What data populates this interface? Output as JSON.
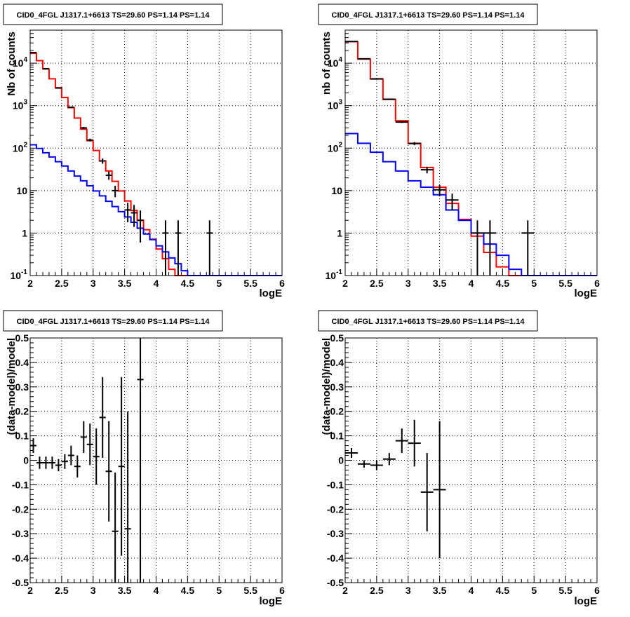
{
  "colors": {
    "data": "#000000",
    "model_total": "#ff0000",
    "model_background": "#0000ff",
    "grid": "#000000",
    "frame": "#000000"
  },
  "chart_data": [
    {
      "type": "line",
      "panel": "top-left",
      "title": "CID0_4FGL J1317.1+6613 TS=29.60 PS=1.14 PS=1.14",
      "xlabel": "logE",
      "ylabel": "Nb of counts",
      "xlim": [
        2,
        6
      ],
      "ylim": [
        0.1,
        60000
      ],
      "yscale": "log",
      "grid": true,
      "xticks": [
        "2",
        "2.5",
        "3",
        "3.5",
        "4",
        "4.5",
        "5",
        "5.5",
        "6"
      ],
      "yticks": [
        {
          "value": 0.1,
          "base": "10",
          "exp": "-1"
        },
        {
          "value": 1,
          "label": "1"
        },
        {
          "value": 10,
          "label": "10"
        },
        {
          "value": 100,
          "base": "10",
          "exp": "2"
        },
        {
          "value": 1000,
          "base": "10",
          "exp": "3"
        },
        {
          "value": 10000,
          "base": "10",
          "exp": "4"
        }
      ],
      "bin_edges": [
        2.0,
        2.1,
        2.2,
        2.3,
        2.4,
        2.5,
        2.6,
        2.7,
        2.8,
        2.9,
        3.0,
        3.1,
        3.2,
        3.3,
        3.4,
        3.5,
        3.6,
        3.7,
        3.8,
        3.9,
        4.0,
        4.1,
        4.2,
        4.3,
        4.4,
        4.5,
        4.6,
        4.7,
        4.8,
        4.9,
        5.0,
        5.1,
        5.2,
        5.3,
        5.4,
        5.5,
        5.6,
        5.7,
        5.8,
        5.9,
        6.0
      ],
      "series": [
        {
          "kind": "step",
          "color": "#ff0000",
          "values": [
            17000,
            11500,
            7300,
            4300,
            2650,
            1550,
            900,
            510,
            280,
            150,
            88,
            50,
            29,
            16.5,
            9.8,
            5.7,
            3.4,
            2.0,
            1.2,
            0.72,
            0.42,
            0.25,
            0.14,
            0.1,
            0.1,
            0.1,
            0.1,
            0.1,
            0.1,
            0.1,
            0.1,
            0.1,
            0.1,
            0.1,
            0.1,
            0.1,
            0.1,
            0.1,
            0.1,
            0.1
          ]
        },
        {
          "kind": "step",
          "color": "#0000ff",
          "values": [
            120,
            98,
            78,
            62,
            48,
            38,
            29,
            22,
            17,
            13,
            9.8,
            7.5,
            5.6,
            4.2,
            3.2,
            2.4,
            1.8,
            1.3,
            0.95,
            0.7,
            0.5,
            0.36,
            0.26,
            0.19,
            0.13,
            0.1,
            0.1,
            0.1,
            0.1,
            0.1,
            0.1,
            0.1,
            0.1,
            0.1,
            0.1,
            0.1,
            0.1,
            0.1,
            0.1,
            0.1
          ]
        },
        {
          "kind": "errorbar",
          "color": "#000000",
          "points": [
            {
              "x": 2.05,
              "y": 17800,
              "lo": 17600,
              "hi": 18000
            },
            {
              "x": 2.25,
              "y": 7400,
              "lo": 7300,
              "hi": 7500
            },
            {
              "x": 2.45,
              "y": 2600,
              "lo": 2550,
              "hi": 2650
            },
            {
              "x": 2.65,
              "y": 920,
              "lo": 890,
              "hi": 950
            },
            {
              "x": 2.85,
              "y": 300,
              "lo": 283,
              "hi": 317
            },
            {
              "x": 2.95,
              "y": 155,
              "lo": 143,
              "hi": 167
            },
            {
              "x": 3.15,
              "y": 50,
              "lo": 43,
              "hi": 57
            },
            {
              "x": 3.25,
              "y": 23,
              "lo": 18,
              "hi": 28
            },
            {
              "x": 3.35,
              "y": 10,
              "lo": 7,
              "hi": 13
            },
            {
              "x": 3.55,
              "y": 3.5,
              "lo": 1.8,
              "hi": 5.2
            },
            {
              "x": 3.65,
              "y": 3.0,
              "lo": 1.4,
              "hi": 4.6
            },
            {
              "x": 3.75,
              "y": 2.0,
              "lo": 0.6,
              "hi": 3.4
            },
            {
              "x": 4.15,
              "y": 1,
              "lo": 0.1,
              "hi": 2.0
            },
            {
              "x": 4.35,
              "y": 1,
              "lo": 0.1,
              "hi": 2.0
            },
            {
              "x": 4.85,
              "y": 1,
              "lo": 0.1,
              "hi": 2.0
            }
          ]
        }
      ]
    },
    {
      "type": "line",
      "panel": "top-right",
      "title": "CID0_4FGL J1317.1+6613 TS=29.60 PS=1.14 PS=1.14",
      "xlabel": "logE",
      "ylabel": "nb of counts",
      "xlim": [
        2,
        6
      ],
      "ylim": [
        0.1,
        60000
      ],
      "yscale": "log",
      "grid": true,
      "xticks": [
        "2",
        "2.5",
        "3",
        "3.5",
        "4",
        "4.5",
        "5",
        "5.5",
        "6"
      ],
      "yticks": [
        {
          "value": 0.1,
          "base": "10",
          "exp": "-1"
        },
        {
          "value": 1,
          "label": "1"
        },
        {
          "value": 10,
          "label": "10"
        },
        {
          "value": 100,
          "base": "10",
          "exp": "2"
        },
        {
          "value": 1000,
          "base": "10",
          "exp": "3"
        },
        {
          "value": 10000,
          "base": "10",
          "exp": "4"
        }
      ],
      "bin_edges": [
        2.0,
        2.2,
        2.4,
        2.6,
        2.8,
        3.0,
        3.2,
        3.4,
        3.6,
        3.8,
        4.0,
        4.2,
        4.4,
        4.6,
        4.8,
        5.0,
        5.2,
        5.4,
        5.6,
        5.8,
        6.0
      ],
      "series": [
        {
          "kind": "step",
          "color": "#ff0000",
          "values": [
            32000,
            12500,
            4300,
            1400,
            440,
            130,
            35,
            12,
            5.0,
            2.1,
            0.85,
            0.35,
            0.16,
            0.1,
            0.1,
            0.1,
            0.1,
            0.1,
            0.1,
            0.1
          ]
        },
        {
          "kind": "step",
          "color": "#0000ff",
          "values": [
            220,
            130,
            80,
            48,
            29,
            17,
            12,
            8,
            3.5,
            2.0,
            1.0,
            0.55,
            0.3,
            0.14,
            0.1,
            0.1,
            0.1,
            0.1,
            0.1,
            0.1
          ]
        },
        {
          "kind": "errorbar",
          "color": "#000000",
          "points": [
            {
              "x": 2.1,
              "y": 32500,
              "lo": 32300,
              "hi": 32700
            },
            {
              "x": 2.3,
              "y": 12700,
              "lo": 12550,
              "hi": 12850
            },
            {
              "x": 2.5,
              "y": 4250,
              "lo": 4180,
              "hi": 4320
            },
            {
              "x": 2.7,
              "y": 1420,
              "lo": 1380,
              "hi": 1460
            },
            {
              "x": 2.9,
              "y": 410,
              "lo": 390,
              "hi": 430
            },
            {
              "x": 3.1,
              "y": 128,
              "lo": 117,
              "hi": 139
            },
            {
              "x": 3.3,
              "y": 31,
              "lo": 25.5,
              "hi": 36.5
            },
            {
              "x": 3.5,
              "y": 10.5,
              "lo": 7.3,
              "hi": 13.7
            },
            {
              "x": 3.7,
              "y": 6,
              "lo": 3.5,
              "hi": 8.5
            },
            {
              "x": 4.1,
              "y": 1,
              "lo": 0.1,
              "hi": 2.0
            },
            {
              "x": 4.3,
              "y": 1,
              "lo": 0.1,
              "hi": 2.0
            },
            {
              "x": 4.9,
              "y": 1,
              "lo": 0.1,
              "hi": 2.0
            }
          ]
        }
      ]
    },
    {
      "type": "scatter",
      "panel": "bottom-left",
      "title": "CID0_4FGL J1317.1+6613 TS=29.60 PS=1.14 PS=1.14",
      "xlabel": "logE",
      "ylabel": "(data-model)/model",
      "xlim": [
        2,
        6
      ],
      "ylim": [
        -0.5,
        0.5
      ],
      "yscale": "linear",
      "grid": true,
      "xticks": [
        "2",
        "2.5",
        "3",
        "3.5",
        "4",
        "4.5",
        "5",
        "5.5",
        "6"
      ],
      "yticks": [
        "-0.5",
        "-0.4",
        "-0.3",
        "-0.2",
        "-0.1",
        "0",
        "0.1",
        "0.2",
        "0.3",
        "0.4",
        "0.5"
      ],
      "series": [
        {
          "kind": "errorbar",
          "color": "#000000",
          "xerr": 0.05,
          "points": [
            {
              "x": 2.05,
              "y": 0.06,
              "lo": 0.03,
              "hi": 0.09
            },
            {
              "x": 2.15,
              "y": -0.01,
              "lo": -0.035,
              "hi": 0.015
            },
            {
              "x": 2.25,
              "y": -0.01,
              "lo": -0.035,
              "hi": 0.015
            },
            {
              "x": 2.35,
              "y": -0.01,
              "lo": -0.035,
              "hi": 0.015
            },
            {
              "x": 2.45,
              "y": -0.02,
              "lo": -0.045,
              "hi": 0.005
            },
            {
              "x": 2.55,
              "y": -0.005,
              "lo": -0.035,
              "hi": 0.025
            },
            {
              "x": 2.65,
              "y": 0.02,
              "lo": -0.02,
              "hi": 0.06
            },
            {
              "x": 2.75,
              "y": -0.025,
              "lo": -0.07,
              "hi": 0.02
            },
            {
              "x": 2.85,
              "y": 0.095,
              "lo": 0.03,
              "hi": 0.16
            },
            {
              "x": 2.95,
              "y": 0.065,
              "lo": -0.02,
              "hi": 0.15
            },
            {
              "x": 3.05,
              "y": 0.015,
              "lo": -0.1,
              "hi": 0.13
            },
            {
              "x": 3.15,
              "y": 0.175,
              "lo": 0.01,
              "hi": 0.34
            },
            {
              "x": 3.25,
              "y": -0.045,
              "lo": -0.25,
              "hi": 0.16
            },
            {
              "x": 3.35,
              "y": -0.29,
              "lo": -0.5,
              "hi": -0.05
            },
            {
              "x": 3.45,
              "y": -0.025,
              "lo": -0.39,
              "hi": 0.34
            },
            {
              "x": 3.55,
              "y": -0.28,
              "lo": -0.5,
              "hi": 0.2
            },
            {
              "x": 3.75,
              "y": 0.33,
              "lo": -0.5,
              "hi": 0.5
            }
          ]
        }
      ]
    },
    {
      "type": "scatter",
      "panel": "bottom-right",
      "title": "CID0_4FGL J1317.1+6613 TS=29.60 PS=1.14 PS=1.14",
      "xlabel": "logE",
      "ylabel": "(data-model)/model",
      "xlim": [
        2,
        6
      ],
      "ylim": [
        -0.5,
        0.5
      ],
      "yscale": "linear",
      "grid": true,
      "xticks": [
        "2",
        "2.5",
        "3",
        "3.5",
        "4",
        "4.5",
        "5",
        "5.5",
        "6"
      ],
      "yticks": [
        "-0.5",
        "-0.4",
        "-0.3",
        "-0.2",
        "-0.1",
        "0",
        "0.1",
        "0.2",
        "0.3",
        "0.4",
        "0.5"
      ],
      "series": [
        {
          "kind": "errorbar",
          "color": "#000000",
          "xerr": 0.1,
          "points": [
            {
              "x": 2.1,
              "y": 0.03,
              "lo": 0.01,
              "hi": 0.05
            },
            {
              "x": 2.3,
              "y": -0.015,
              "lo": -0.03,
              "hi": 0.0
            },
            {
              "x": 2.5,
              "y": -0.02,
              "lo": -0.04,
              "hi": 0.0
            },
            {
              "x": 2.7,
              "y": 0.005,
              "lo": -0.02,
              "hi": 0.03
            },
            {
              "x": 2.9,
              "y": 0.08,
              "lo": 0.03,
              "hi": 0.13
            },
            {
              "x": 3.1,
              "y": 0.07,
              "lo": -0.025,
              "hi": 0.165
            },
            {
              "x": 3.3,
              "y": -0.13,
              "lo": -0.29,
              "hi": 0.03
            },
            {
              "x": 3.5,
              "y": -0.12,
              "lo": -0.4,
              "hi": 0.16
            }
          ]
        }
      ]
    }
  ]
}
